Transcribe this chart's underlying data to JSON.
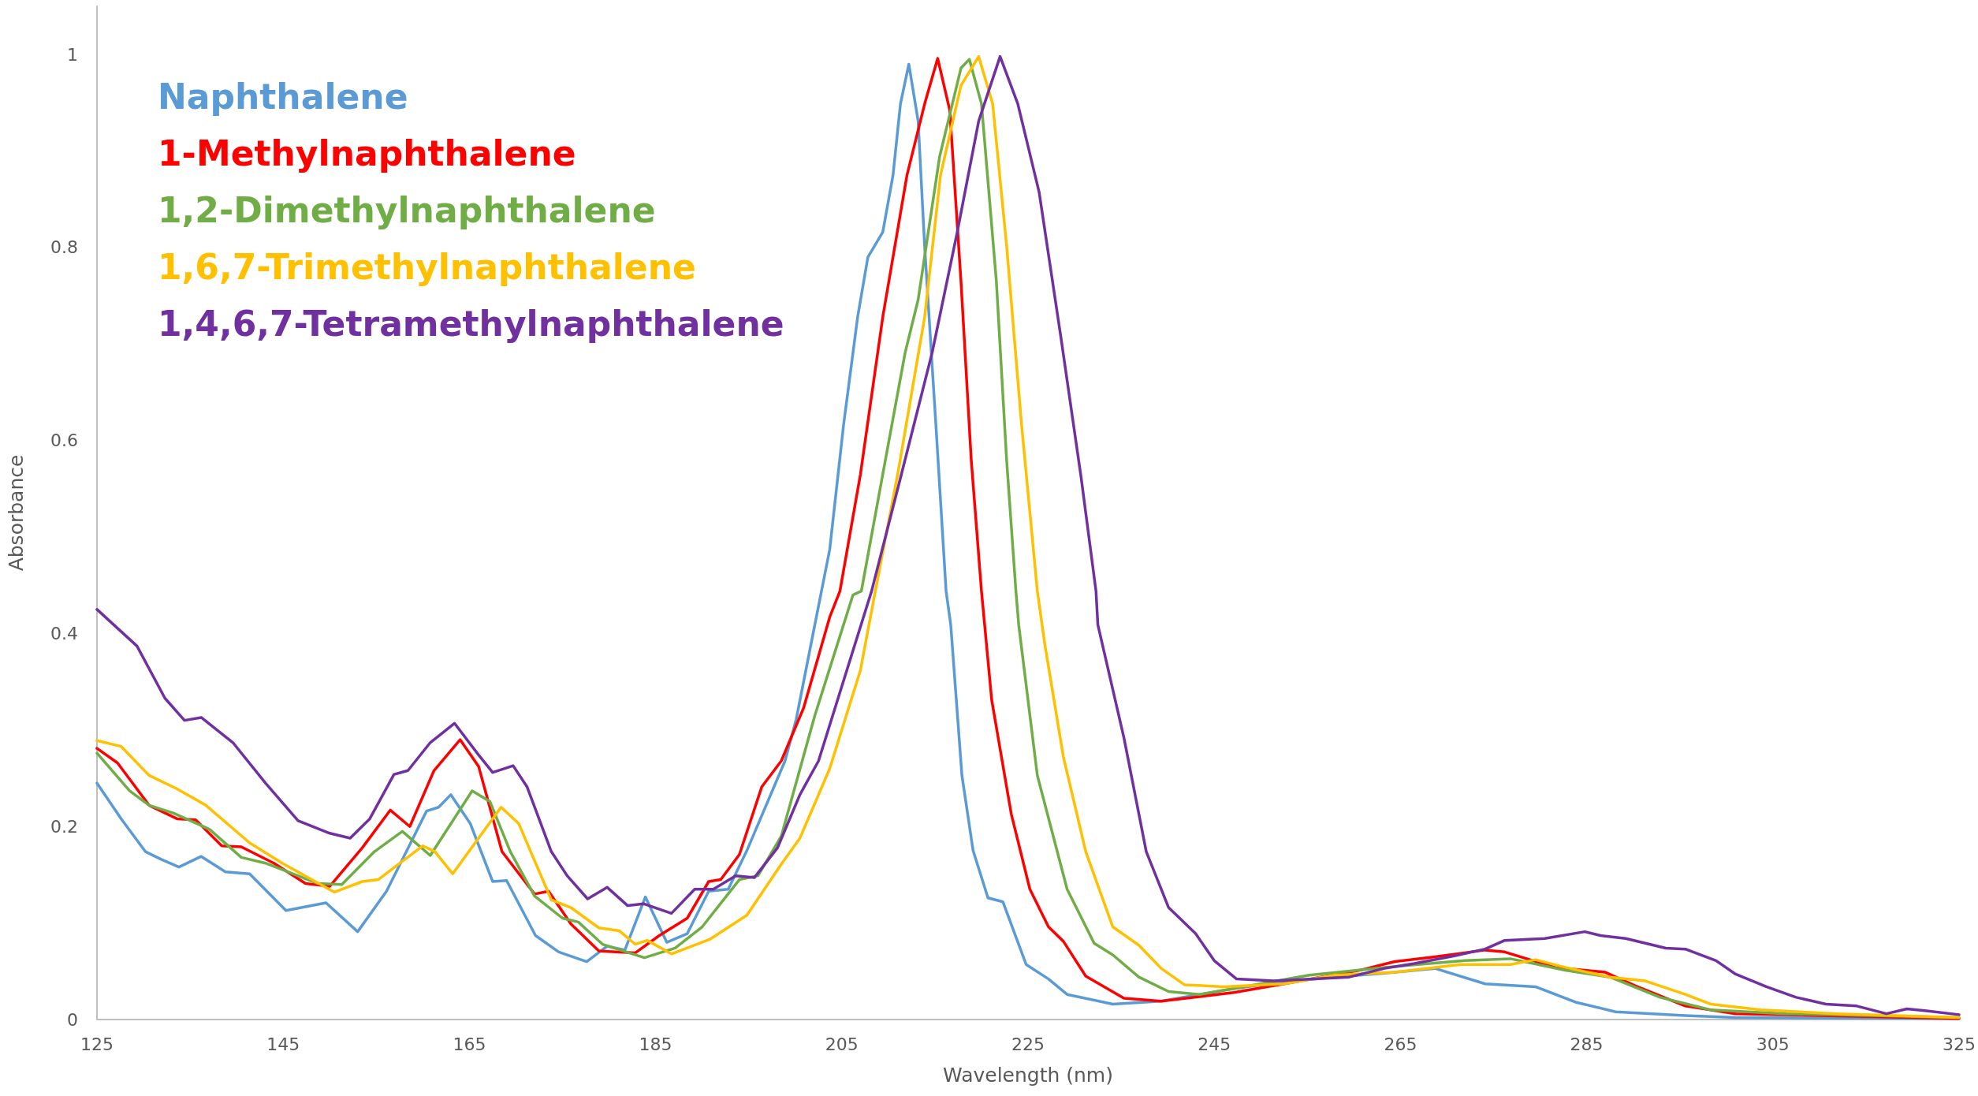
{
  "chart_data": {
    "type": "line",
    "xlabel": "Wavelength (nm)",
    "ylabel": "Absorbance",
    "xlim": [
      125,
      325
    ],
    "xticks": [
      125,
      145,
      165,
      185,
      205,
      225,
      245,
      265,
      285,
      305,
      325
    ],
    "ylim": [
      0,
      1.05
    ],
    "yticks": [
      0,
      0.2,
      0.4,
      0.6,
      0.8,
      1
    ],
    "grid": false,
    "legend": "top left",
    "marker": "none",
    "line_style": "solid",
    "series": [
      {
        "name": "Naphthalene",
        "color": "#5b9bd5",
        "x": [
          125,
          127.6,
          130.2,
          131.9,
          133.8,
          136.2,
          138.8,
          141.4,
          145.3,
          149.6,
          153,
          156.1,
          160.4,
          161.7,
          163,
          165.1,
          167.5,
          169,
          172.1,
          174.6,
          177.6,
          179.8,
          181.7,
          183.9,
          186.2,
          188.4,
          190.7,
          192.8,
          194.8,
          198.9,
          200.1,
          202.1,
          203.7,
          205.2,
          206.7,
          207.8,
          209.4,
          210.5,
          211.3,
          212.2,
          213.2,
          213.9,
          215.1,
          216.2,
          216.7,
          217.9,
          219.1,
          220.7,
          222.3,
          224.8,
          227.2,
          229.2,
          234.1,
          239.3,
          247.1,
          252.5,
          257.9,
          263.3,
          268.7,
          274.1,
          279.5,
          283.8,
          288.1,
          295.6,
          301,
          325
        ],
        "values": [
          0.245,
          0.208,
          0.174,
          0.166,
          0.158,
          0.169,
          0.153,
          0.151,
          0.113,
          0.121,
          0.091,
          0.133,
          0.216,
          0.22,
          0.233,
          0.203,
          0.143,
          0.144,
          0.087,
          0.07,
          0.06,
          0.076,
          0.072,
          0.127,
          0.08,
          0.089,
          0.133,
          0.135,
          0.175,
          0.268,
          0.311,
          0.409,
          0.487,
          0.617,
          0.728,
          0.79,
          0.816,
          0.875,
          0.949,
          0.99,
          0.931,
          0.801,
          0.617,
          0.444,
          0.409,
          0.253,
          0.175,
          0.126,
          0.122,
          0.057,
          0.042,
          0.026,
          0.016,
          0.019,
          0.032,
          0.039,
          0.044,
          0.048,
          0.053,
          0.037,
          0.034,
          0.018,
          0.008,
          0.004,
          0.002,
          0.001
        ]
      },
      {
        "name": "1-Methylnaphthalene",
        "color": "#ff0000",
        "x": [
          125,
          127.2,
          130.6,
          133.6,
          135.6,
          138.4,
          140.5,
          144,
          147.4,
          150,
          153.5,
          156.5,
          158.6,
          161.2,
          164,
          166,
          168.5,
          172,
          173.5,
          175.9,
          178.9,
          182.8,
          185.4,
          188.4,
          190.7,
          192,
          194,
          196.4,
          198.5,
          200.9,
          203.7,
          204.8,
          207,
          209.4,
          212,
          213.9,
          215.3,
          216.6,
          217.8,
          218.9,
          220,
          221.1,
          223.2,
          225.2,
          227.2,
          228.8,
          231.2,
          235.3,
          239.3,
          247.1,
          252.5,
          260.6,
          264.4,
          268.7,
          274.1,
          276.2,
          281.6,
          287,
          290.2,
          295.6,
          301,
          325
        ],
        "values": [
          0.281,
          0.266,
          0.222,
          0.208,
          0.207,
          0.18,
          0.179,
          0.162,
          0.141,
          0.138,
          0.178,
          0.217,
          0.2,
          0.258,
          0.29,
          0.262,
          0.174,
          0.13,
          0.133,
          0.099,
          0.071,
          0.069,
          0.087,
          0.105,
          0.143,
          0.145,
          0.171,
          0.241,
          0.268,
          0.323,
          0.417,
          0.444,
          0.565,
          0.728,
          0.875,
          0.949,
          0.996,
          0.942,
          0.765,
          0.58,
          0.444,
          0.331,
          0.213,
          0.135,
          0.096,
          0.081,
          0.045,
          0.022,
          0.019,
          0.028,
          0.037,
          0.051,
          0.06,
          0.065,
          0.072,
          0.07,
          0.054,
          0.049,
          0.035,
          0.014,
          0.006,
          0.001
        ]
      },
      {
        "name": "1,2-Dimethylnaphthalene",
        "color": "#70ad47",
        "x": [
          125,
          128.5,
          130.6,
          133.2,
          137.1,
          140.5,
          143.1,
          148.7,
          151.3,
          154.8,
          157.8,
          160.8,
          165.3,
          167.2,
          169.4,
          172,
          175,
          176.7,
          179.3,
          183.8,
          187.1,
          190,
          194,
          196,
          198.5,
          202.1,
          206.2,
          207.1,
          209.4,
          211.8,
          213.2,
          215.5,
          217.8,
          218.7,
          220,
          221.6,
          222.7,
          223.7,
          224,
          226,
          229.2,
          232.1,
          234.1,
          236.9,
          240.1,
          243.4,
          247.1,
          255.2,
          263.3,
          271.9,
          276.8,
          282.7,
          287.5,
          292.9,
          298.3,
          306.4,
          325
        ],
        "values": [
          0.276,
          0.237,
          0.222,
          0.214,
          0.197,
          0.168,
          0.162,
          0.141,
          0.14,
          0.174,
          0.195,
          0.17,
          0.237,
          0.226,
          0.174,
          0.128,
          0.105,
          0.101,
          0.078,
          0.064,
          0.074,
          0.096,
          0.145,
          0.149,
          0.19,
          0.315,
          0.44,
          0.444,
          0.565,
          0.691,
          0.746,
          0.894,
          0.986,
          0.995,
          0.949,
          0.765,
          0.58,
          0.444,
          0.409,
          0.253,
          0.135,
          0.079,
          0.067,
          0.044,
          0.029,
          0.026,
          0.032,
          0.046,
          0.054,
          0.061,
          0.063,
          0.051,
          0.044,
          0.023,
          0.01,
          0.006,
          0.002
        ]
      },
      {
        "name": "1,6,7-Trimethylnaphthalene",
        "color": "#ffc000",
        "x": [
          125,
          127.6,
          130.6,
          133.6,
          136.7,
          141.4,
          144.9,
          150.5,
          153.5,
          155.2,
          160,
          161.3,
          163.2,
          168.4,
          170.3,
          173.8,
          175.9,
          178.9,
          181.1,
          182.8,
          184.1,
          186.7,
          190.8,
          194.8,
          198.5,
          200.5,
          203.7,
          207,
          208.6,
          211,
          213.9,
          215.6,
          217.8,
          219.7,
          221.2,
          222.7,
          224.3,
          226,
          226.8,
          228.8,
          231.2,
          234.1,
          236.9,
          239.3,
          241.8,
          246,
          252.5,
          257.9,
          264.4,
          271.4,
          276.8,
          279.5,
          282.7,
          287.5,
          291.3,
          295.6,
          298.3,
          303.7,
          311.8,
          325
        ],
        "values": [
          0.289,
          0.283,
          0.253,
          0.239,
          0.222,
          0.183,
          0.162,
          0.132,
          0.143,
          0.145,
          0.18,
          0.174,
          0.151,
          0.22,
          0.203,
          0.124,
          0.116,
          0.095,
          0.092,
          0.078,
          0.082,
          0.068,
          0.083,
          0.108,
          0.161,
          0.188,
          0.26,
          0.362,
          0.444,
          0.565,
          0.728,
          0.875,
          0.968,
          0.998,
          0.949,
          0.802,
          0.617,
          0.444,
          0.389,
          0.272,
          0.174,
          0.096,
          0.077,
          0.053,
          0.036,
          0.034,
          0.037,
          0.046,
          0.049,
          0.057,
          0.057,
          0.062,
          0.054,
          0.044,
          0.04,
          0.026,
          0.016,
          0.01,
          0.006,
          0.002
        ]
      },
      {
        "name": "1,4,6,7-Tetramethylnaphthalene",
        "color": "#7030a0",
        "x": [
          125,
          129.3,
          132.3,
          134.4,
          136.2,
          139.6,
          143.1,
          146.6,
          150,
          152.2,
          154.3,
          156.9,
          158.4,
          160.8,
          163.4,
          166,
          167.5,
          169.7,
          171.2,
          173.8,
          175.5,
          177.7,
          179.8,
          182,
          183.7,
          186.7,
          189.2,
          191.2,
          193.6,
          195.6,
          198.1,
          200.5,
          202.5,
          205.8,
          208.2,
          211.4,
          214.7,
          217.4,
          219.7,
          222,
          223.9,
          226.2,
          228.5,
          230.7,
          232.3,
          232.5,
          235.3,
          237.7,
          240.1,
          243,
          245,
          247.4,
          251.4,
          255.7,
          259.5,
          263.3,
          266.5,
          270.8,
          274.1,
          276.2,
          280.5,
          284.8,
          286.5,
          289.2,
          293.5,
          295.6,
          298.9,
          301,
          304.3,
          307.5,
          310.7,
          314,
          317.2,
          319.4,
          321.5,
          325
        ],
        "values": [
          0.425,
          0.387,
          0.333,
          0.31,
          0.313,
          0.287,
          0.245,
          0.206,
          0.193,
          0.188,
          0.208,
          0.254,
          0.258,
          0.287,
          0.307,
          0.274,
          0.256,
          0.263,
          0.241,
          0.174,
          0.149,
          0.125,
          0.137,
          0.118,
          0.12,
          0.11,
          0.135,
          0.135,
          0.149,
          0.147,
          0.178,
          0.233,
          0.268,
          0.37,
          0.444,
          0.565,
          0.691,
          0.816,
          0.931,
          0.998,
          0.949,
          0.857,
          0.709,
          0.562,
          0.444,
          0.409,
          0.292,
          0.174,
          0.116,
          0.089,
          0.061,
          0.042,
          0.04,
          0.042,
          0.044,
          0.053,
          0.058,
          0.066,
          0.073,
          0.082,
          0.084,
          0.091,
          0.087,
          0.084,
          0.074,
          0.073,
          0.061,
          0.047,
          0.034,
          0.023,
          0.016,
          0.014,
          0.006,
          0.011,
          0.009,
          0.005
        ]
      }
    ]
  }
}
